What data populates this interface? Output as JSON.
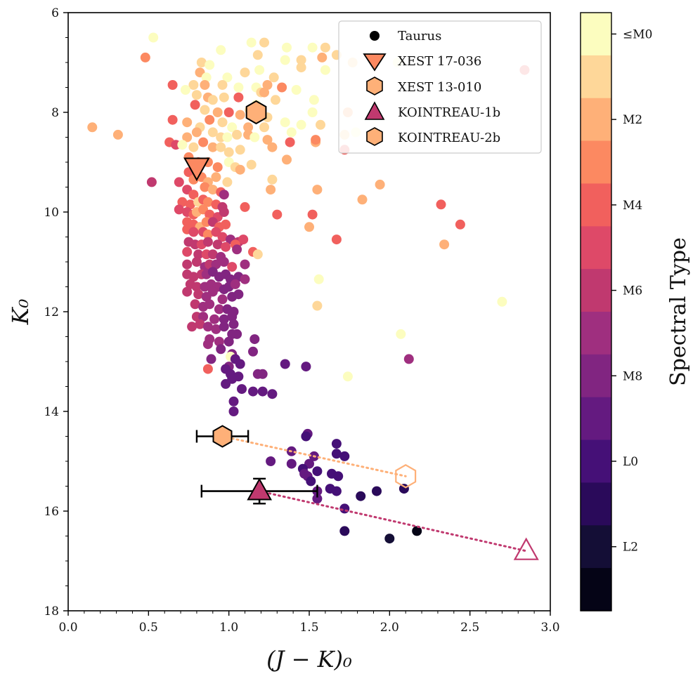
{
  "chart_data": {
    "type": "scatter",
    "xlabel": "(J − K)₀",
    "ylabel": "K₀",
    "xlim": [
      0.0,
      3.0
    ],
    "ylim": [
      18,
      6
    ],
    "y_inverted": true,
    "x_ticks": [
      "0.0",
      "0.5",
      "1.0",
      "1.5",
      "2.0",
      "2.5",
      "3.0"
    ],
    "y_ticks": [
      "6",
      "8",
      "10",
      "12",
      "14",
      "16",
      "18"
    ],
    "colorbar": {
      "label": "Spectral Type",
      "tick_labels": [
        "≤M0",
        "M2",
        "M4",
        "M6",
        "M8",
        "L0",
        "L2"
      ],
      "colors": [
        "#fcfdbf",
        "#fed799",
        "#feb078",
        "#fc8961",
        "#f1605d",
        "#de4968",
        "#c0396f",
        "#9f2f7f",
        "#812581",
        "#641a80",
        "#451077",
        "#2a0a5a",
        "#140e36",
        "#050416"
      ]
    },
    "legend": {
      "position": "top-right",
      "entries": [
        "Taurus",
        "XEST 17-036",
        "XEST 13-010",
        "KOINTREAU-1b",
        "KOINTREAU-2b"
      ]
    },
    "taurus": [
      [
        0.53,
        6.5,
        0
      ],
      [
        0.95,
        6.75,
        0
      ],
      [
        1.14,
        6.6,
        0
      ],
      [
        1.22,
        6.6,
        1
      ],
      [
        1.36,
        6.7,
        0
      ],
      [
        1.52,
        6.7,
        0
      ],
      [
        1.6,
        6.7,
        1
      ],
      [
        0.48,
        6.9,
        3
      ],
      [
        0.83,
        7.0,
        1
      ],
      [
        0.88,
        7.05,
        0
      ],
      [
        1.18,
        6.85,
        1
      ],
      [
        1.35,
        6.95,
        0
      ],
      [
        1.45,
        6.95,
        1
      ],
      [
        1.58,
        6.9,
        2
      ],
      [
        1.67,
        6.85,
        1
      ],
      [
        0.82,
        7.2,
        2
      ],
      [
        0.86,
        7.3,
        0
      ],
      [
        0.99,
        7.3,
        0
      ],
      [
        1.1,
        7.2,
        1
      ],
      [
        1.19,
        7.15,
        0
      ],
      [
        1.28,
        7.3,
        1
      ],
      [
        1.45,
        7.1,
        1
      ],
      [
        1.6,
        7.15,
        0
      ],
      [
        1.77,
        7.0,
        1
      ],
      [
        2.05,
        7.0,
        0
      ],
      [
        2.84,
        7.15,
        4
      ],
      [
        0.65,
        7.45,
        4
      ],
      [
        0.78,
        7.45,
        1
      ],
      [
        0.85,
        7.45,
        2
      ],
      [
        0.96,
        7.45,
        1
      ],
      [
        1.06,
        7.5,
        0
      ],
      [
        1.17,
        7.5,
        0
      ],
      [
        1.24,
        7.45,
        2
      ],
      [
        1.33,
        7.5,
        3
      ],
      [
        1.42,
        7.55,
        0
      ],
      [
        1.2,
        7.6,
        1
      ],
      [
        1.29,
        7.75,
        1
      ],
      [
        0.73,
        7.55,
        0
      ],
      [
        0.8,
        7.65,
        1
      ],
      [
        0.87,
        7.7,
        2
      ],
      [
        0.97,
        7.7,
        1
      ],
      [
        1.06,
        7.7,
        4
      ],
      [
        1.17,
        7.85,
        0
      ],
      [
        1.13,
        7.95,
        1
      ],
      [
        1.22,
        7.6,
        2
      ],
      [
        1.53,
        7.75,
        0
      ],
      [
        0.79,
        7.85,
        4
      ],
      [
        0.9,
        7.75,
        1
      ],
      [
        0.85,
        7.95,
        1
      ],
      [
        0.93,
        8.0,
        2
      ],
      [
        1.0,
        8.0,
        4
      ],
      [
        1.07,
        8.05,
        2
      ],
      [
        1.24,
        8.1,
        1
      ],
      [
        1.52,
        8.0,
        0
      ],
      [
        1.74,
        8.0,
        2
      ],
      [
        0.65,
        8.15,
        4
      ],
      [
        0.74,
        8.2,
        2
      ],
      [
        0.82,
        8.3,
        1
      ],
      [
        0.88,
        8.15,
        3
      ],
      [
        0.96,
        8.2,
        1
      ],
      [
        1.02,
        8.3,
        0
      ],
      [
        1.12,
        8.3,
        2
      ],
      [
        1.22,
        8.3,
        1
      ],
      [
        1.35,
        8.2,
        0
      ],
      [
        1.45,
        8.25,
        0
      ],
      [
        1.57,
        8.25,
        1
      ],
      [
        0.15,
        8.3,
        2
      ],
      [
        0.31,
        8.45,
        2
      ],
      [
        0.63,
        8.6,
        4
      ],
      [
        0.67,
        8.65,
        5
      ],
      [
        0.74,
        8.5,
        2
      ],
      [
        0.8,
        8.4,
        2
      ],
      [
        0.9,
        8.4,
        1
      ],
      [
        0.95,
        8.5,
        1
      ],
      [
        0.99,
        8.5,
        0
      ],
      [
        1.05,
        8.45,
        1
      ],
      [
        1.12,
        8.45,
        2
      ],
      [
        1.16,
        8.5,
        0
      ],
      [
        1.24,
        8.55,
        2
      ],
      [
        1.39,
        8.4,
        0
      ],
      [
        1.54,
        8.6,
        2
      ],
      [
        1.72,
        8.45,
        1
      ],
      [
        1.79,
        8.4,
        0
      ],
      [
        0.71,
        8.65,
        0
      ],
      [
        0.78,
        8.7,
        1
      ],
      [
        0.84,
        8.6,
        3
      ],
      [
        0.9,
        8.7,
        2
      ],
      [
        0.95,
        8.7,
        1
      ],
      [
        1.0,
        8.8,
        1
      ],
      [
        1.07,
        8.75,
        1
      ],
      [
        1.27,
        8.7,
        2
      ],
      [
        1.38,
        8.6,
        4
      ],
      [
        1.72,
        8.75,
        4
      ],
      [
        1.54,
        8.55,
        3
      ],
      [
        0.75,
        8.9,
        3
      ],
      [
        0.81,
        9.0,
        4
      ],
      [
        0.87,
        9.0,
        3
      ],
      [
        0.93,
        9.1,
        3
      ],
      [
        1.0,
        9.0,
        0
      ],
      [
        1.04,
        9.1,
        1
      ],
      [
        1.07,
        9.15,
        2
      ],
      [
        1.36,
        8.95,
        2
      ],
      [
        1.14,
        9.05,
        1
      ],
      [
        0.52,
        9.4,
        6
      ],
      [
        0.69,
        9.4,
        5
      ],
      [
        0.75,
        9.2,
        4
      ],
      [
        0.78,
        9.35,
        3
      ],
      [
        0.83,
        9.3,
        3
      ],
      [
        0.87,
        9.4,
        2
      ],
      [
        0.92,
        9.3,
        2
      ],
      [
        0.99,
        9.4,
        1
      ],
      [
        1.27,
        9.35,
        1
      ],
      [
        1.94,
        9.45,
        2
      ],
      [
        0.74,
        9.55,
        5
      ],
      [
        0.78,
        9.65,
        4
      ],
      [
        0.85,
        9.5,
        3
      ],
      [
        0.9,
        9.55,
        2
      ],
      [
        0.95,
        9.6,
        4
      ],
      [
        0.97,
        9.65,
        7
      ],
      [
        1.26,
        9.55,
        2
      ],
      [
        1.55,
        9.55,
        2
      ],
      [
        0.71,
        9.8,
        4
      ],
      [
        0.76,
        9.85,
        4
      ],
      [
        0.81,
        9.8,
        1
      ],
      [
        0.84,
        9.75,
        4
      ],
      [
        0.87,
        9.8,
        3
      ],
      [
        0.92,
        9.85,
        4
      ],
      [
        0.96,
        9.9,
        6
      ],
      [
        1.1,
        9.9,
        4
      ],
      [
        1.83,
        9.75,
        2
      ],
      [
        2.32,
        9.85,
        4
      ],
      [
        0.69,
        9.95,
        5
      ],
      [
        0.74,
        10.0,
        5
      ],
      [
        0.78,
        10.05,
        4
      ],
      [
        0.8,
        10.0,
        2
      ],
      [
        0.84,
        9.95,
        3
      ],
      [
        0.88,
        10.05,
        4
      ],
      [
        0.93,
        10.1,
        5
      ],
      [
        0.97,
        10.0,
        6
      ],
      [
        1.3,
        10.05,
        4
      ],
      [
        1.52,
        10.05,
        4
      ],
      [
        2.44,
        10.25,
        4
      ],
      [
        0.74,
        10.2,
        4
      ],
      [
        0.78,
        10.25,
        4
      ],
      [
        0.82,
        10.3,
        2
      ],
      [
        0.86,
        10.2,
        3
      ],
      [
        0.9,
        10.2,
        6
      ],
      [
        0.94,
        10.3,
        4
      ],
      [
        0.98,
        10.25,
        4
      ],
      [
        1.5,
        10.3,
        2
      ],
      [
        1.67,
        10.55,
        4
      ],
      [
        2.34,
        10.65,
        2
      ],
      [
        0.74,
        10.35,
        4
      ],
      [
        0.78,
        10.4,
        5
      ],
      [
        0.84,
        10.4,
        5
      ],
      [
        0.87,
        10.45,
        3
      ],
      [
        0.92,
        10.4,
        5
      ],
      [
        0.96,
        10.5,
        5
      ],
      [
        1.01,
        10.55,
        7
      ],
      [
        1.06,
        10.6,
        6
      ],
      [
        1.09,
        10.55,
        5
      ],
      [
        0.75,
        10.6,
        6
      ],
      [
        0.79,
        10.65,
        6
      ],
      [
        0.83,
        10.65,
        5
      ],
      [
        0.87,
        10.6,
        6
      ],
      [
        0.93,
        10.65,
        6
      ],
      [
        0.98,
        10.7,
        5
      ],
      [
        1.04,
        10.65,
        4
      ],
      [
        1.05,
        10.75,
        7
      ],
      [
        0.74,
        10.8,
        5
      ],
      [
        0.81,
        10.85,
        6
      ],
      [
        0.86,
        10.85,
        5
      ],
      [
        0.9,
        10.85,
        6
      ],
      [
        0.95,
        10.9,
        7
      ],
      [
        1.15,
        10.8,
        4
      ],
      [
        1.18,
        10.85,
        1
      ],
      [
        0.74,
        11.05,
        6
      ],
      [
        0.8,
        11.0,
        6
      ],
      [
        0.85,
        11.1,
        7
      ],
      [
        0.88,
        11.05,
        6
      ],
      [
        0.92,
        11.05,
        7
      ],
      [
        0.97,
        11.0,
        7
      ],
      [
        1.02,
        11.1,
        5
      ],
      [
        1.1,
        11.05,
        7
      ],
      [
        0.74,
        11.25,
        6
      ],
      [
        0.78,
        11.3,
        6
      ],
      [
        0.83,
        11.25,
        6
      ],
      [
        0.86,
        11.25,
        7
      ],
      [
        0.9,
        11.2,
        8
      ],
      [
        0.94,
        11.3,
        8
      ],
      [
        0.98,
        11.25,
        8
      ],
      [
        1.01,
        11.35,
        8
      ],
      [
        1.06,
        11.3,
        8
      ],
      [
        1.1,
        11.35,
        7
      ],
      [
        1.56,
        11.35,
        0
      ],
      [
        0.76,
        11.45,
        6
      ],
      [
        0.8,
        11.5,
        6
      ],
      [
        0.85,
        11.5,
        7
      ],
      [
        0.89,
        11.45,
        7
      ],
      [
        0.93,
        11.5,
        7
      ],
      [
        0.97,
        11.55,
        8
      ],
      [
        1.0,
        11.5,
        8
      ],
      [
        1.04,
        11.45,
        7
      ],
      [
        0.74,
        11.6,
        6
      ],
      [
        0.81,
        11.65,
        6
      ],
      [
        0.86,
        11.7,
        7
      ],
      [
        0.9,
        11.6,
        7
      ],
      [
        0.96,
        11.75,
        7
      ],
      [
        1.02,
        11.7,
        8
      ],
      [
        1.06,
        11.65,
        8
      ],
      [
        0.79,
        11.85,
        6
      ],
      [
        0.84,
        11.9,
        7
      ],
      [
        0.88,
        11.85,
        7
      ],
      [
        0.94,
        11.95,
        7
      ],
      [
        0.99,
        11.95,
        8
      ],
      [
        1.03,
        12.0,
        8
      ],
      [
        1.55,
        11.88,
        1
      ],
      [
        2.7,
        11.8,
        0
      ],
      [
        0.8,
        12.1,
        6
      ],
      [
        0.84,
        12.1,
        7
      ],
      [
        0.91,
        12.15,
        7
      ],
      [
        0.97,
        12.15,
        8
      ],
      [
        1.02,
        12.1,
        8
      ],
      [
        1.03,
        12.25,
        8
      ],
      [
        0.77,
        12.3,
        6
      ],
      [
        0.82,
        12.25,
        6
      ],
      [
        0.87,
        12.3,
        7
      ],
      [
        0.92,
        12.35,
        7
      ],
      [
        0.97,
        12.3,
        8
      ],
      [
        1.02,
        12.45,
        8
      ],
      [
        1.05,
        12.45,
        8
      ],
      [
        0.88,
        12.55,
        7
      ],
      [
        0.94,
        12.6,
        7
      ],
      [
        1.0,
        12.6,
        8
      ],
      [
        1.16,
        12.55,
        8
      ],
      [
        2.07,
        12.45,
        0
      ],
      [
        0.87,
        12.65,
        7
      ],
      [
        0.95,
        12.75,
        8
      ],
      [
        1.02,
        12.85,
        8
      ],
      [
        1.15,
        12.8,
        8
      ],
      [
        0.89,
        12.95,
        8
      ],
      [
        1.01,
        12.9,
        0
      ],
      [
        1.04,
        12.95,
        9
      ],
      [
        2.12,
        12.95,
        7
      ],
      [
        1.0,
        13.1,
        8
      ],
      [
        1.07,
        13.05,
        9
      ],
      [
        0.98,
        13.15,
        9
      ],
      [
        0.87,
        13.15,
        4
      ],
      [
        1.35,
        13.05,
        9
      ],
      [
        1.48,
        13.1,
        9
      ],
      [
        1.01,
        13.25,
        9
      ],
      [
        1.06,
        13.3,
        9
      ],
      [
        1.18,
        13.25,
        8
      ],
      [
        1.21,
        13.25,
        8
      ],
      [
        1.74,
        13.3,
        0
      ],
      [
        0.98,
        13.45,
        9
      ],
      [
        1.02,
        13.35,
        9
      ],
      [
        1.08,
        13.55,
        9
      ],
      [
        1.15,
        13.6,
        9
      ],
      [
        1.21,
        13.6,
        9
      ],
      [
        1.27,
        13.65,
        9
      ],
      [
        1.03,
        13.8,
        9
      ],
      [
        1.03,
        14.0,
        9
      ],
      [
        1.67,
        14.65,
        10
      ],
      [
        1.49,
        14.45,
        9
      ],
      [
        1.48,
        14.5,
        10
      ],
      [
        1.39,
        14.8,
        9
      ],
      [
        1.53,
        14.9,
        9
      ],
      [
        1.67,
        14.85,
        10
      ],
      [
        1.72,
        14.9,
        10
      ],
      [
        1.39,
        15.05,
        9
      ],
      [
        1.5,
        15.05,
        9
      ],
      [
        1.26,
        15.0,
        9
      ],
      [
        1.46,
        15.15,
        10
      ],
      [
        1.55,
        15.2,
        10
      ],
      [
        1.64,
        15.25,
        10
      ],
      [
        1.47,
        15.25,
        9
      ],
      [
        1.49,
        15.3,
        9
      ],
      [
        1.68,
        15.3,
        10
      ],
      [
        1.51,
        15.4,
        10
      ],
      [
        1.63,
        15.55,
        10
      ],
      [
        1.55,
        15.6,
        9
      ],
      [
        1.67,
        15.6,
        10
      ],
      [
        1.82,
        15.7,
        11
      ],
      [
        1.92,
        15.6,
        11
      ],
      [
        2.09,
        15.55,
        11
      ],
      [
        1.55,
        15.75,
        9
      ],
      [
        1.72,
        15.95,
        10
      ],
      [
        1.72,
        16.4,
        11
      ],
      [
        2.0,
        16.55,
        12
      ],
      [
        2.17,
        16.4,
        13
      ]
    ],
    "xest_17_036": {
      "x": 0.8,
      "y": 9.1,
      "marker": "down-triangle",
      "color": "#fc8961"
    },
    "xest_13_010": {
      "x": 1.17,
      "y": 8.0,
      "marker": "hexagon",
      "color": "#feb078"
    },
    "kointreau_1b": {
      "x": 1.19,
      "y": 15.6,
      "xerr": 0.36,
      "yerr": 0.25,
      "marker": "triangle",
      "color": "#c0396f",
      "open_point": {
        "x": 2.85,
        "y": 16.8
      }
    },
    "kointreau_2b": {
      "x": 0.96,
      "y": 14.5,
      "xerr": 0.16,
      "yerr": 0.12,
      "marker": "hexagon",
      "color": "#feb078",
      "open_point": {
        "x": 2.1,
        "y": 15.3
      }
    }
  }
}
